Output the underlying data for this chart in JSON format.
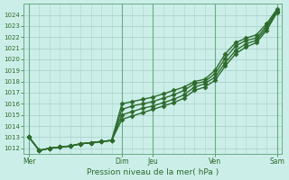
{
  "title": "",
  "xlabel": "Pression niveau de la mer( hPa )",
  "ylabel": "",
  "bg_color": "#cceee8",
  "grid_color": "#aad4cc",
  "line_color": "#2d6b2d",
  "ylim": [
    1011.5,
    1025.0
  ],
  "yticks": [
    1012,
    1013,
    1014,
    1015,
    1016,
    1017,
    1018,
    1019,
    1020,
    1021,
    1022,
    1023,
    1024
  ],
  "day_labels": [
    "Mer",
    "Dim",
    "Jeu",
    "Ven",
    "Sam"
  ],
  "day_positions": [
    0,
    9,
    12,
    18,
    24
  ],
  "num_points": 25,
  "series": [
    [
      1013.0,
      1011.8,
      1012.0,
      1012.1,
      1012.2,
      1012.4,
      1012.5,
      1012.6,
      1012.7,
      1016.0,
      1016.2,
      1016.4,
      1016.6,
      1016.9,
      1017.2,
      1017.5,
      1018.0,
      1018.2,
      1019.0,
      1020.5,
      1021.5,
      1021.9,
      1022.2,
      1023.2,
      1024.5
    ],
    [
      1013.0,
      1011.8,
      1012.0,
      1012.1,
      1012.2,
      1012.4,
      1012.5,
      1012.6,
      1012.7,
      1015.5,
      1015.8,
      1016.0,
      1016.2,
      1016.5,
      1016.8,
      1017.2,
      1017.8,
      1018.0,
      1018.7,
      1020.1,
      1021.2,
      1021.7,
      1021.9,
      1023.0,
      1024.4
    ],
    [
      1013.0,
      1011.8,
      1012.0,
      1012.1,
      1012.2,
      1012.4,
      1012.5,
      1012.6,
      1012.7,
      1015.0,
      1015.3,
      1015.6,
      1015.8,
      1016.1,
      1016.4,
      1016.8,
      1017.5,
      1017.8,
      1018.4,
      1019.7,
      1020.8,
      1021.4,
      1021.7,
      1022.8,
      1024.3
    ],
    [
      1013.0,
      1011.8,
      1012.0,
      1012.1,
      1012.2,
      1012.4,
      1012.5,
      1012.6,
      1012.7,
      1014.6,
      1014.9,
      1015.2,
      1015.5,
      1015.8,
      1016.1,
      1016.5,
      1017.2,
      1017.5,
      1018.1,
      1019.4,
      1020.5,
      1021.1,
      1021.5,
      1022.6,
      1024.2
    ]
  ],
  "marker": "D",
  "marker_size": 2.5,
  "line_width": 1.0
}
